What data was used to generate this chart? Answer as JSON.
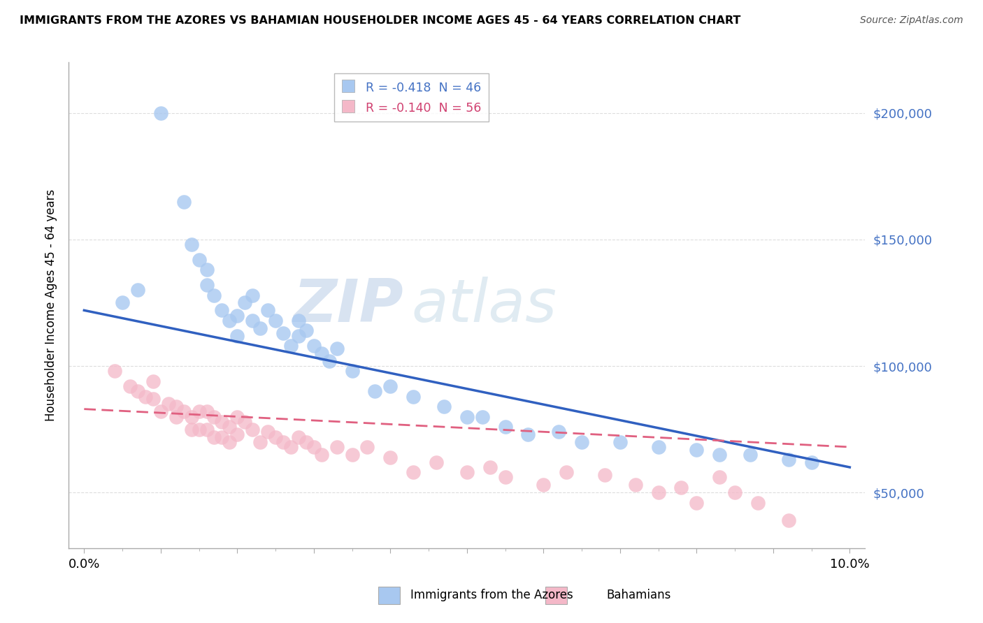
{
  "title": "IMMIGRANTS FROM THE AZORES VS BAHAMIAN HOUSEHOLDER INCOME AGES 45 - 64 YEARS CORRELATION CHART",
  "source": "Source: ZipAtlas.com",
  "ylabel": "Householder Income Ages 45 - 64 years",
  "legend_entries": [
    {
      "label": "R = -0.418  N = 46",
      "color": "#a8c8f0"
    },
    {
      "label": "R = -0.140  N = 56",
      "color": "#f4b8c8"
    }
  ],
  "legend_labels": [
    "Immigrants from the Azores",
    "Bahamians"
  ],
  "watermark_zip": "ZIP",
  "watermark_atlas": "atlas",
  "yticks": [
    50000,
    100000,
    150000,
    200000
  ],
  "ytick_labels": [
    "$50,000",
    "$100,000",
    "$150,000",
    "$200,000"
  ],
  "xticks": [
    0.0,
    0.01,
    0.02,
    0.03,
    0.04,
    0.05,
    0.06,
    0.07,
    0.08,
    0.09,
    0.1
  ],
  "xlim": [
    -0.002,
    0.102
  ],
  "ylim": [
    28000,
    220000
  ],
  "blue_color": "#a8c8f0",
  "pink_color": "#f4b8c8",
  "blue_line_color": "#3060c0",
  "pink_line_color": "#e06080",
  "background_color": "#ffffff",
  "blue_scatter_x": [
    0.005,
    0.007,
    0.01,
    0.013,
    0.014,
    0.015,
    0.016,
    0.016,
    0.017,
    0.018,
    0.019,
    0.02,
    0.02,
    0.021,
    0.022,
    0.022,
    0.023,
    0.024,
    0.025,
    0.026,
    0.027,
    0.028,
    0.028,
    0.029,
    0.03,
    0.031,
    0.032,
    0.033,
    0.035,
    0.038,
    0.04,
    0.043,
    0.047,
    0.05,
    0.052,
    0.055,
    0.058,
    0.062,
    0.065,
    0.07,
    0.075,
    0.08,
    0.083,
    0.087,
    0.092,
    0.095
  ],
  "blue_scatter_y": [
    125000,
    130000,
    200000,
    165000,
    148000,
    142000,
    138000,
    132000,
    128000,
    122000,
    118000,
    112000,
    120000,
    125000,
    128000,
    118000,
    115000,
    122000,
    118000,
    113000,
    108000,
    118000,
    112000,
    114000,
    108000,
    105000,
    102000,
    107000,
    98000,
    90000,
    92000,
    88000,
    84000,
    80000,
    80000,
    76000,
    73000,
    74000,
    70000,
    70000,
    68000,
    67000,
    65000,
    65000,
    63000,
    62000
  ],
  "pink_scatter_x": [
    0.004,
    0.006,
    0.007,
    0.008,
    0.009,
    0.009,
    0.01,
    0.011,
    0.012,
    0.012,
    0.013,
    0.014,
    0.014,
    0.015,
    0.015,
    0.016,
    0.016,
    0.017,
    0.017,
    0.018,
    0.018,
    0.019,
    0.019,
    0.02,
    0.02,
    0.021,
    0.022,
    0.023,
    0.024,
    0.025,
    0.026,
    0.027,
    0.028,
    0.029,
    0.03,
    0.031,
    0.033,
    0.035,
    0.037,
    0.04,
    0.043,
    0.046,
    0.05,
    0.053,
    0.055,
    0.06,
    0.063,
    0.068,
    0.072,
    0.075,
    0.078,
    0.08,
    0.083,
    0.085,
    0.088,
    0.092
  ],
  "pink_scatter_y": [
    98000,
    92000,
    90000,
    88000,
    94000,
    87000,
    82000,
    85000,
    80000,
    84000,
    82000,
    80000,
    75000,
    82000,
    75000,
    82000,
    75000,
    80000,
    72000,
    78000,
    72000,
    76000,
    70000,
    80000,
    73000,
    78000,
    75000,
    70000,
    74000,
    72000,
    70000,
    68000,
    72000,
    70000,
    68000,
    65000,
    68000,
    65000,
    68000,
    64000,
    58000,
    62000,
    58000,
    60000,
    56000,
    53000,
    58000,
    57000,
    53000,
    50000,
    52000,
    46000,
    56000,
    50000,
    46000,
    39000
  ],
  "blue_line_x": [
    0.0,
    0.1
  ],
  "blue_line_y": [
    122000,
    60000
  ],
  "pink_line_x": [
    0.0,
    0.1
  ],
  "pink_line_y": [
    83000,
    68000
  ],
  "grid_color": "#dddddd",
  "spine_color": "#aaaaaa"
}
